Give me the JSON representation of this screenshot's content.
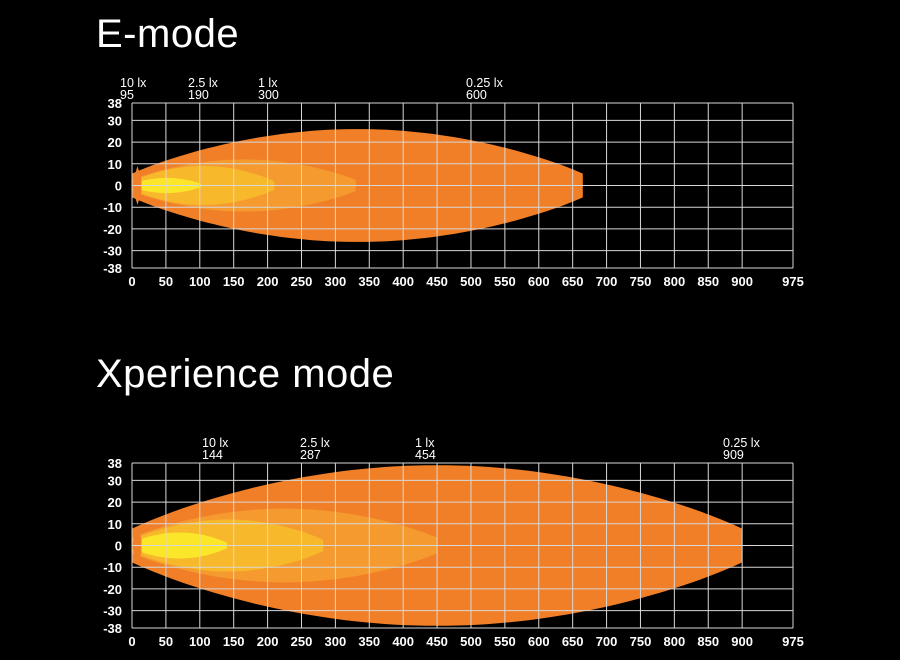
{
  "chart_data": [
    {
      "type": "area",
      "title": "E-mode",
      "xlabel": "",
      "ylabel": "",
      "xlim": [
        0,
        975
      ],
      "ylim": [
        -38,
        38
      ],
      "x_ticks": [
        0,
        50,
        100,
        150,
        200,
        250,
        300,
        350,
        400,
        450,
        500,
        550,
        600,
        650,
        700,
        750,
        800,
        850,
        900,
        975
      ],
      "y_ticks": [
        38,
        30,
        20,
        10,
        0,
        -10,
        -20,
        -30,
        -38
      ],
      "grid": true,
      "series": [
        {
          "name": "0.25 lx",
          "reach": 600,
          "plotted_end": 665,
          "half_width": 26,
          "color": "#f07f28"
        },
        {
          "name": "1 lx",
          "reach": 300,
          "plotted_end": 330,
          "half_width": 12,
          "color": "#f59a2e"
        },
        {
          "name": "2.5 lx",
          "reach": 190,
          "plotted_end": 210,
          "half_width": 9,
          "color": "#f8b82b"
        },
        {
          "name": "10 lx",
          "reach": 95,
          "plotted_end": 102,
          "half_width": 3.5,
          "color": "#fbe62a"
        }
      ],
      "annotations": [
        {
          "label": "10 lx",
          "value": "95"
        },
        {
          "label": "2.5 lx",
          "value": "190"
        },
        {
          "label": "1 lx",
          "value": "300"
        },
        {
          "label": "0.25 lx",
          "value": "600"
        }
      ]
    },
    {
      "type": "area",
      "title": "Xperience mode",
      "xlabel": "",
      "ylabel": "",
      "xlim": [
        0,
        975
      ],
      "ylim": [
        -38,
        38
      ],
      "x_ticks": [
        0,
        50,
        100,
        150,
        200,
        250,
        300,
        350,
        400,
        450,
        500,
        550,
        600,
        650,
        700,
        750,
        800,
        850,
        900,
        975
      ],
      "y_ticks": [
        38,
        30,
        20,
        10,
        0,
        -10,
        -20,
        -30,
        -38
      ],
      "grid": true,
      "series": [
        {
          "name": "0.25 lx",
          "reach": 909,
          "plotted_end": 900,
          "half_width": 37,
          "color": "#f07f28"
        },
        {
          "name": "1 lx",
          "reach": 454,
          "plotted_end": 450,
          "half_width": 17,
          "color": "#f59a2e"
        },
        {
          "name": "2.5 lx",
          "reach": 287,
          "plotted_end": 282,
          "half_width": 12,
          "color": "#f8b82b"
        },
        {
          "name": "10 lx",
          "reach": 144,
          "plotted_end": 140,
          "half_width": 6,
          "color": "#fbe62a"
        }
      ],
      "annotations": [
        {
          "label": "10 lx",
          "value": "144"
        },
        {
          "label": "2.5 lx",
          "value": "287"
        },
        {
          "label": "1 lx",
          "value": "454"
        },
        {
          "label": "0.25 lx",
          "value": "909"
        }
      ]
    }
  ]
}
